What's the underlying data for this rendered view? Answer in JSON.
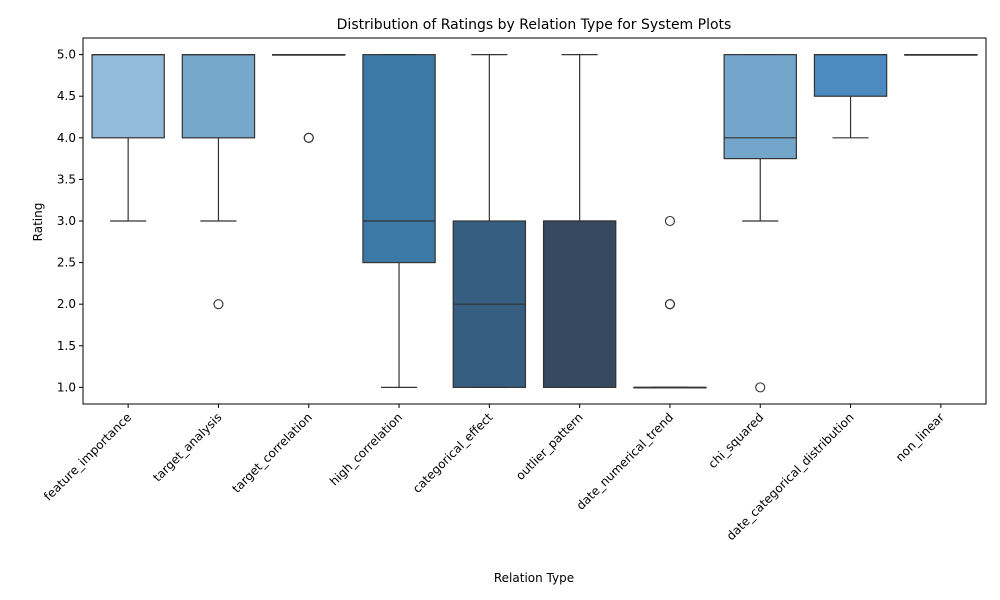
{
  "chart_data": {
    "type": "box",
    "title": "Distribution of Ratings by Relation Type for System Plots",
    "xlabel": "Relation Type",
    "ylabel": "Rating",
    "ylim": [
      0.8,
      5.2
    ],
    "yticks": [
      "1.0",
      "1.5",
      "2.0",
      "2.5",
      "3.0",
      "3.5",
      "4.0",
      "4.5",
      "5.0"
    ],
    "grid": false,
    "legend": "none",
    "categories": [
      "feature_importance",
      "target_analysis",
      "target_correlation",
      "high_correlation",
      "categorical_effect",
      "outlier_pattern",
      "date_numerical_trend",
      "chi_squared",
      "date_categorical_distribution",
      "non_linear"
    ],
    "boxes": [
      {
        "category": "feature_importance",
        "min": 3,
        "q1": 4,
        "median": 5,
        "q3": 5,
        "max": 5,
        "outliers": [],
        "color": "#94bbd9"
      },
      {
        "category": "target_analysis",
        "min": 3,
        "q1": 4,
        "median": 5,
        "q3": 5,
        "max": 5,
        "outliers": [
          2
        ],
        "color": "#76a8cb"
      },
      {
        "category": "target_correlation",
        "min": 5,
        "q1": 5,
        "median": 5,
        "q3": 5,
        "max": 5,
        "outliers": [
          4,
          4
        ],
        "color": "#5f9bc9"
      },
      {
        "category": "high_correlation",
        "min": 1,
        "q1": 2.5,
        "median": 3,
        "q3": 5,
        "max": 5,
        "outliers": [],
        "color": "#3c79a6"
      },
      {
        "category": "categorical_effect",
        "min": 1,
        "q1": 1,
        "median": 2,
        "q3": 3,
        "max": 5,
        "outliers": [],
        "color": "#365e80"
      },
      {
        "category": "outlier_pattern",
        "min": 1,
        "q1": 1,
        "median": 3,
        "q3": 3,
        "max": 5,
        "outliers": [],
        "color": "#354a5e"
      },
      {
        "category": "date_numerical_trend",
        "min": 1,
        "q1": 1,
        "median": 1,
        "q3": 1,
        "max": 1,
        "outliers": [
          2,
          2,
          3
        ],
        "color": "#3d4c5c"
      },
      {
        "category": "chi_squared",
        "min": 3,
        "q1": 3.75,
        "median": 4,
        "q3": 5,
        "max": 5,
        "outliers": [
          1
        ],
        "color": "#74a6cb"
      },
      {
        "category": "date_categorical_distribution",
        "min": 4,
        "q1": 4.5,
        "median": 5,
        "q3": 5,
        "max": 5,
        "outliers": [],
        "color": "#4b8bc2"
      },
      {
        "category": "non_linear",
        "min": 5,
        "q1": 5,
        "median": 5,
        "q3": 5,
        "max": 5,
        "outliers": [],
        "color": "#6ea3cf"
      }
    ]
  }
}
